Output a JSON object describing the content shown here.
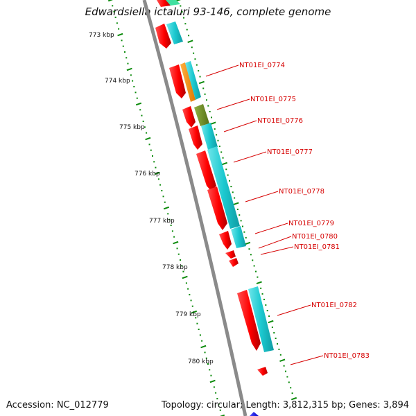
{
  "title": "Edwardsiella ictaluri 93-146, complete genome",
  "footer": {
    "accession": "Accession: NC_012779",
    "stats": "Topology: circular; Length: 3,812,315 bp; Genes: 3,894"
  },
  "colors": {
    "backbone": "#8a8a8a",
    "cds": "#ff0000",
    "cds_dark": "#aa0000",
    "cog_cyan": "#18c8d0",
    "cog_orange": "#ff8c00",
    "cog_olive": "#6b8e23",
    "tick_green": "#0a8a0a",
    "label_red": "#d60000"
  },
  "kbp_labels": [
    "773 kbp",
    "774 kbp",
    "775 kbp",
    "776 kbp",
    "777 kbp",
    "778 kbp",
    "779 kbp",
    "780 kbp"
  ],
  "gene_labels": [
    "NT01EI_0774",
    "NT01EI_0775",
    "NT01EI_0776",
    "NT01EI_0777",
    "NT01EI_0778",
    "NT01EI_0779",
    "NT01EI_0780",
    "NT01EI_0781",
    "NT01EI_0782",
    "NT01EI_0783"
  ]
}
